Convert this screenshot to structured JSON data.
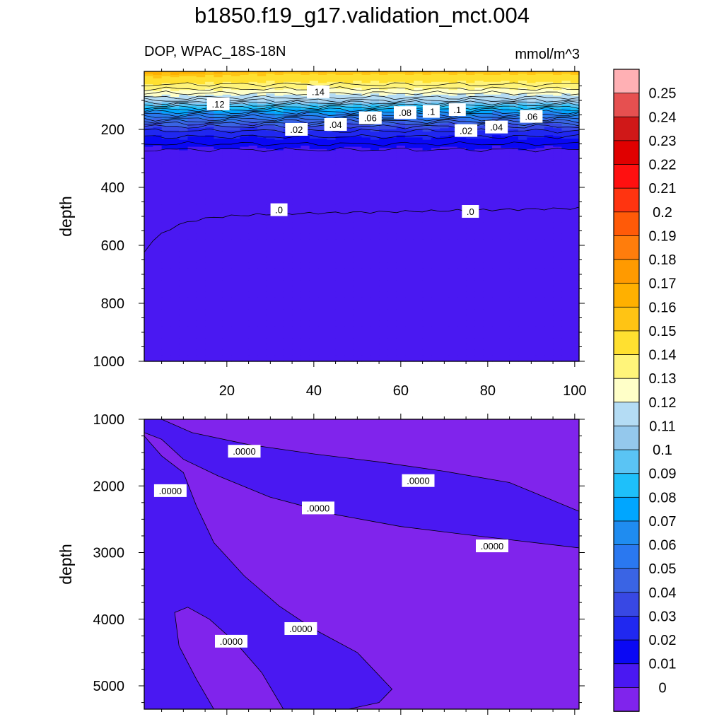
{
  "figure": {
    "title": "b1850.f19_g17.validation_mct.004",
    "subtitle_left": "DOP, WPAC_18S-18N",
    "subtitle_right": "mmol/m^3"
  },
  "chart_data": [
    {
      "type": "heatmap",
      "panel": "upper",
      "variable": "DOP",
      "region": "WPAC_18S-18N",
      "units": "mmol/m^3",
      "xlabel": "",
      "ylabel": "depth",
      "xlim": [
        1,
        101
      ],
      "ylim": [
        1000,
        0
      ],
      "y_inverted": true,
      "x_ticks": [
        "20",
        "40",
        "60",
        "80",
        "100"
      ],
      "y_ticks": [
        "200",
        "400",
        "600",
        "800",
        "1000"
      ],
      "profile_depth": [
        0,
        10,
        50,
        100,
        150,
        200,
        250,
        300,
        500,
        1000
      ],
      "profile_value": [
        0.16,
        0.15,
        0.135,
        0.11,
        0.06,
        0.03,
        0.012,
        0.005,
        0.0,
        0.0
      ],
      "contour_labels": [
        {
          "text": ".14",
          "x": 41,
          "y": 70
        },
        {
          "text": ".12",
          "x": 18,
          "y": 112
        },
        {
          "text": ".02",
          "x": 36,
          "y": 200
        },
        {
          "text": ".04",
          "x": 45,
          "y": 183
        },
        {
          "text": ".06",
          "x": 53,
          "y": 160
        },
        {
          "text": ".08",
          "x": 61,
          "y": 142
        },
        {
          "text": ".1",
          "x": 67,
          "y": 138
        },
        {
          "text": ".1",
          "x": 73,
          "y": 132
        },
        {
          "text": ".02",
          "x": 75,
          "y": 204
        },
        {
          "text": ".04",
          "x": 82,
          "y": 192
        },
        {
          "text": ".06",
          "x": 90,
          "y": 155
        },
        {
          "text": ".0",
          "x": 32,
          "y": 477
        },
        {
          "text": ".0",
          "x": 76,
          "y": 483
        }
      ]
    },
    {
      "type": "heatmap",
      "panel": "lower",
      "xlabel": "",
      "ylabel": "depth",
      "xlim": [
        1,
        101
      ],
      "ylim": [
        5350,
        1000
      ],
      "y_inverted": true,
      "y_ticks": [
        "1000",
        "2000",
        "3000",
        "4000",
        "5000"
      ],
      "levels_shown": [
        "0",
        "0.01"
      ],
      "contour_labels": [
        {
          "text": ".0000",
          "x": 24,
          "y": 1480
        },
        {
          "text": ".0000",
          "x": 7,
          "y": 2070
        },
        {
          "text": ".0000",
          "x": 64,
          "y": 1920
        },
        {
          "text": ".0000",
          "x": 41,
          "y": 2330
        },
        {
          "text": ".0000",
          "x": 81,
          "y": 2900
        },
        {
          "text": ".0000",
          "x": 21,
          "y": 4330
        },
        {
          "text": ".0000",
          "x": 37,
          "y": 4140
        }
      ]
    }
  ],
  "colorbar": {
    "levels": [
      "0.25",
      "0.24",
      "0.23",
      "0.22",
      "0.21",
      "0.2",
      "0.19",
      "0.18",
      "0.17",
      "0.16",
      "0.15",
      "0.14",
      "0.13",
      "0.12",
      "0.11",
      "0.1",
      "0.09",
      "0.08",
      "0.07",
      "0.06",
      "0.05",
      "0.04",
      "0.03",
      "0.02",
      "0.01",
      "0"
    ],
    "colors_top_to_bottom": [
      "#ffb0b4",
      "#e65050",
      "#d01818",
      "#e00000",
      "#ff1010",
      "#ff3410",
      "#ff5a08",
      "#ff7d0c",
      "#ff9a00",
      "#ffb000",
      "#ffc414",
      "#ffe030",
      "#fff47a",
      "#ffffc8",
      "#b4dcf4",
      "#94c8ec",
      "#5ac4f4",
      "#1ec0fa",
      "#00a6ff",
      "#1f8cf0",
      "#2a78f0",
      "#3a64e4",
      "#3848e4",
      "#2028f0",
      "#0a08f4",
      "#4a18f2",
      "#8024ec"
    ]
  }
}
